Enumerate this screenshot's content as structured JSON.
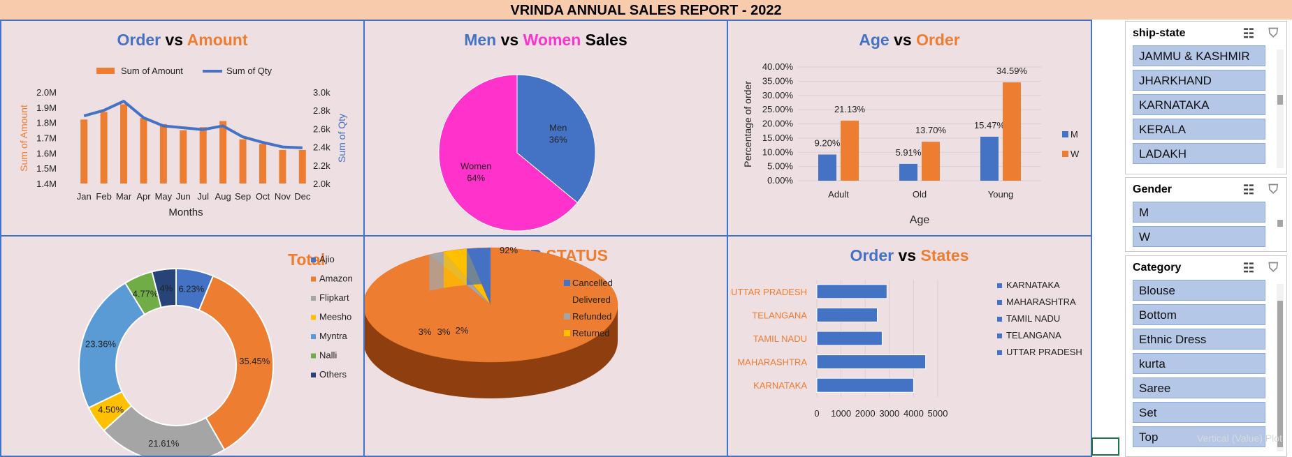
{
  "report_title": "VRINDA ANNUAL SALES REPORT - 2022",
  "panels": {
    "order_amount": {
      "t1": "Order",
      "t2": " vs ",
      "t3": "Amount"
    },
    "men_women": {
      "t1": "Men",
      "t2": " vs ",
      "t3": "Women",
      "t4": " Sales"
    },
    "age_order": {
      "t1": "Age",
      "t2": " vs ",
      "t3": "Order"
    },
    "total": {
      "t1": "Total"
    },
    "order_status": {
      "t1": "ORDER",
      "t2": " STATUS"
    },
    "order_states": {
      "t1": "Order",
      "t2": " vs ",
      "t3": "States"
    }
  },
  "chart_data": [
    {
      "type": "bar",
      "id": "order_vs_amount",
      "title": "Order vs Amount",
      "categories": [
        "Jan",
        "Feb",
        "Mar",
        "Apr",
        "May",
        "Jun",
        "Jul",
        "Aug",
        "Sep",
        "Oct",
        "Nov",
        "Dec"
      ],
      "series": [
        {
          "name": "Sum of Amount",
          "type": "bar",
          "axis": "left",
          "color": "#ed7d31",
          "values": [
            1.82,
            1.87,
            1.92,
            1.83,
            1.79,
            1.75,
            1.77,
            1.81,
            1.69,
            1.66,
            1.62,
            1.62
          ]
        },
        {
          "name": "Sum of Qty",
          "type": "line",
          "axis": "right",
          "color": "#4472c4",
          "values": [
            2.74,
            2.8,
            2.9,
            2.72,
            2.63,
            2.61,
            2.59,
            2.63,
            2.51,
            2.45,
            2.4,
            2.39
          ]
        }
      ],
      "xlabel": "Months",
      "ylabel": "Sum of Amount",
      "y2label": "Sum of Qty",
      "ylim": [
        1.4,
        2.0
      ],
      "yticks": [
        "1.4M",
        "1.5M",
        "1.6M",
        "1.7M",
        "1.8M",
        "1.9M",
        "2.0M"
      ],
      "y2lim": [
        2.0,
        3.0
      ],
      "y2ticks": [
        "2.0k",
        "2.2k",
        "2.4k",
        "2.6k",
        "2.8k",
        "3.0k"
      ],
      "legend": "top"
    },
    {
      "type": "pie",
      "id": "men_vs_women",
      "title": "Men vs Women Sales",
      "slices": [
        {
          "label": "Men",
          "value": 36,
          "text": "36%",
          "color": "#4472c4"
        },
        {
          "label": "Women",
          "value": 64,
          "text": "64%",
          "color": "#ff33cc"
        }
      ]
    },
    {
      "type": "bar",
      "id": "age_vs_order",
      "title": "Age vs Order",
      "categories": [
        "Adult",
        "Old",
        "Young"
      ],
      "series": [
        {
          "name": "M",
          "color": "#4472c4",
          "values": [
            9.2,
            5.91,
            15.47
          ],
          "labels": [
            "9.20%",
            "5.91%",
            "15.47%"
          ]
        },
        {
          "name": "W",
          "color": "#ed7d31",
          "values": [
            21.13,
            13.7,
            34.59
          ],
          "labels": [
            "21.13%",
            "13.70%",
            "34.59%"
          ]
        }
      ],
      "xlabel": "Age",
      "ylabel": "Percentage of order",
      "ylim": [
        0,
        40
      ],
      "yticks": [
        "0.00%",
        "5.00%",
        "10.00%",
        "15.00%",
        "20.00%",
        "25.00%",
        "30.00%",
        "35.00%",
        "40.00%"
      ],
      "legend": "right"
    },
    {
      "type": "pie",
      "id": "total",
      "title": "Total",
      "donut": true,
      "slices": [
        {
          "label": "Ajio",
          "value": 6.23,
          "text": "6.23%",
          "color": "#4472c4"
        },
        {
          "label": "Amazon",
          "value": 35.45,
          "text": "35.45%",
          "color": "#ed7d31"
        },
        {
          "label": "Flipkart",
          "value": 21.61,
          "text": "21.61%",
          "color": "#a5a5a5"
        },
        {
          "label": "Meesho",
          "value": 4.5,
          "text": "4.50%",
          "color": "#ffc000"
        },
        {
          "label": "Myntra",
          "value": 23.36,
          "text": "23.36%",
          "color": "#5b9bd5"
        },
        {
          "label": "Nalli",
          "value": 4.77,
          "text": "4.77%",
          "color": "#70ad47"
        },
        {
          "label": "Others",
          "value": 4,
          "text": "4%",
          "color": "#264478"
        }
      ],
      "legend": "right"
    },
    {
      "type": "pie",
      "id": "order_status",
      "title": "ORDER STATUS",
      "slices": [
        {
          "label": "Cancelled",
          "value": 3,
          "text": "3%",
          "color": "#4472c4"
        },
        {
          "label": "Delivered",
          "value": 92,
          "text": "92%",
          "color": "#ed7d31"
        },
        {
          "label": "Refunded",
          "value": 2,
          "text": "2%",
          "color": "#a5a5a5"
        },
        {
          "label": "Returned",
          "value": 3,
          "text": "3%",
          "color": "#ffc000"
        }
      ],
      "legend": "right"
    },
    {
      "type": "bar",
      "id": "order_vs_states",
      "title": "Order vs States",
      "orientation": "horizontal",
      "categories": [
        "KARNATAKA",
        "MAHARASHTRA",
        "TAMIL NADU",
        "TELANGANA",
        "UTTAR PRADESH"
      ],
      "values": [
        4000,
        4500,
        2700,
        2500,
        2900
      ],
      "color": "#4472c4",
      "xlim": [
        0,
        5000
      ],
      "xticks": [
        "0",
        "1000",
        "2000",
        "3000",
        "4000",
        "5000"
      ],
      "legend": "right",
      "legend_entries": [
        "KARNATAKA",
        "MAHARASHTRA",
        "TAMIL NADU",
        "TELANGANA",
        "UTTAR PRADESH"
      ]
    }
  ],
  "slicers": {
    "ship_state": {
      "title": "ship-state",
      "items": [
        "JAMMU & KASHMIR",
        "JHARKHAND",
        "KARNATAKA",
        "KERALA",
        "LADAKH"
      ]
    },
    "gender": {
      "title": "Gender",
      "items": [
        "M",
        "W"
      ]
    },
    "category": {
      "title": "Category",
      "items": [
        "Blouse",
        "Bottom",
        "Ethnic Dress",
        "kurta",
        "Saree",
        "Set",
        "Top"
      ]
    }
  },
  "faint_label": "Vertical (Value) Plot"
}
